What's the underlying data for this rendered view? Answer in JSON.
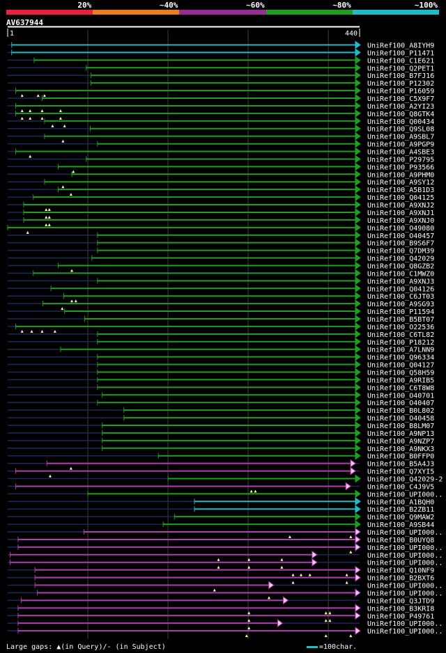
{
  "colors": {
    "bg": "#000000",
    "bin_20": "#e8213c",
    "bin_40": "#ee7a1e",
    "bin_60": "#962e96",
    "bin_80": "#1f9e1f",
    "bin_100": "#1fbcc8",
    "hit_green": "#1f9e1f",
    "hit_magenta": "#b03cb0",
    "hit_cyan": "#1fbcc8",
    "unaligned": "#1a2a5a",
    "gridline": "#404040"
  },
  "legend": {
    "bins": [
      {
        "label": "20%",
        "color": "#e8213c"
      },
      {
        "label": "~40%",
        "color": "#ee7a1e"
      },
      {
        "label": "~60%",
        "color": "#962e96"
      },
      {
        "label": "~80%",
        "color": "#1f9e1f"
      },
      {
        "label": "~100%",
        "color": "#1fbcc8"
      }
    ]
  },
  "query": {
    "id": "AV637944",
    "start_label": "1",
    "end_label": "440"
  },
  "footer": {
    "gaps_text": "Large gaps: ▲(in Query)/- (in Subject)",
    "scale_text": "=100char."
  },
  "chart_data": {
    "type": "alignment-overview",
    "query_length": 440,
    "identity_bins": [
      "20%",
      "~40%",
      "~60%",
      "~80%",
      "~100%"
    ],
    "hits": [
      {
        "name": "UniRef100_A8IYH9",
        "start": 6,
        "end": 440,
        "bin": "~100%",
        "arrow": "filled",
        "ins": []
      },
      {
        "name": "UniRef100_P11471",
        "start": 6,
        "end": 440,
        "bin": "~100%",
        "arrow": "filled",
        "ins": []
      },
      {
        "name": "UniRef100_C1E621",
        "start": 34,
        "end": 440,
        "bin": "~80%",
        "arrow": "filled",
        "ins": []
      },
      {
        "name": "UniRef100_Q2PET1",
        "start": 99,
        "end": 440,
        "bin": "~80%",
        "arrow": "filled",
        "ins": []
      },
      {
        "name": "UniRef100_B7FJ16",
        "start": 105,
        "end": 440,
        "bin": "~80%",
        "arrow": "filled",
        "ins": []
      },
      {
        "name": "UniRef100_P12302",
        "start": 105,
        "end": 440,
        "bin": "~80%",
        "arrow": "filled",
        "ins": []
      },
      {
        "name": "UniRef100_P16059",
        "start": 11,
        "end": 440,
        "bin": "~80%",
        "arrow": "filled",
        "ins": [
          19,
          39,
          47
        ]
      },
      {
        "name": "UniRef100_C5X9F7",
        "start": 44,
        "end": 440,
        "bin": "~80%",
        "arrow": "filled",
        "ins": []
      },
      {
        "name": "UniRef100_A2YI23",
        "start": 11,
        "end": 440,
        "bin": "~80%",
        "arrow": "filled",
        "ins": [
          19,
          29,
          44,
          67
        ]
      },
      {
        "name": "UniRef100_Q8GTK4",
        "start": 11,
        "end": 440,
        "bin": "~80%",
        "arrow": "filled",
        "ins": [
          19,
          29,
          44,
          67
        ]
      },
      {
        "name": "UniRef100_Q00434",
        "start": 47,
        "end": 440,
        "bin": "~80%",
        "arrow": "filled",
        "ins": [
          57,
          72
        ]
      },
      {
        "name": "UniRef100_Q9SL08",
        "start": 104,
        "end": 440,
        "bin": "~80%",
        "arrow": "filled",
        "ins": []
      },
      {
        "name": "UniRef100_A9SBL7",
        "start": 47,
        "end": 440,
        "bin": "~80%",
        "arrow": "filled",
        "ins": [
          70
        ]
      },
      {
        "name": "UniRef100_A9PGP9",
        "start": 113,
        "end": 440,
        "bin": "~80%",
        "arrow": "filled",
        "ins": []
      },
      {
        "name": "UniRef100_A4SBE3",
        "start": 11,
        "end": 440,
        "bin": "~80%",
        "arrow": "filled",
        "ins": [
          29
        ]
      },
      {
        "name": "UniRef100_P29795",
        "start": 99,
        "end": 440,
        "bin": "~80%",
        "arrow": "filled",
        "ins": []
      },
      {
        "name": "UniRef100_P93566",
        "start": 64,
        "end": 440,
        "bin": "~80%",
        "arrow": "filled",
        "ins": [
          83
        ]
      },
      {
        "name": "UniRef100_A9PHM0",
        "start": 81,
        "end": 440,
        "bin": "~80%",
        "arrow": "filled",
        "ins": []
      },
      {
        "name": "UniRef100_A9SY12",
        "start": 47,
        "end": 440,
        "bin": "~80%",
        "arrow": "filled",
        "ins": [
          70
        ]
      },
      {
        "name": "UniRef100_A5B1D3",
        "start": 64,
        "end": 440,
        "bin": "~80%",
        "arrow": "filled",
        "ins": [
          80
        ]
      },
      {
        "name": "UniRef100_Q04125",
        "start": 33,
        "end": 440,
        "bin": "~80%",
        "arrow": "filled",
        "ins": []
      },
      {
        "name": "UniRef100_A9XNJ2",
        "start": 21,
        "end": 440,
        "bin": "~80%",
        "arrow": "filled",
        "ins": [
          49,
          53
        ]
      },
      {
        "name": "UniRef100_A9XNJ1",
        "start": 21,
        "end": 440,
        "bin": "~80%",
        "arrow": "filled",
        "ins": [
          49,
          53
        ]
      },
      {
        "name": "UniRef100_A9XNJ0",
        "start": 21,
        "end": 440,
        "bin": "~80%",
        "arrow": "filled",
        "ins": [
          49,
          53
        ]
      },
      {
        "name": "UniRef100_O49080",
        "start": 1,
        "end": 440,
        "bin": "~80%",
        "arrow": "filled",
        "ins": [
          26
        ]
      },
      {
        "name": "UniRef100_O40457",
        "start": 113,
        "end": 440,
        "bin": "~80%",
        "arrow": "filled",
        "ins": []
      },
      {
        "name": "UniRef100_B9S6F7",
        "start": 113,
        "end": 440,
        "bin": "~80%",
        "arrow": "filled",
        "ins": []
      },
      {
        "name": "UniRef100_Q7DM39",
        "start": 113,
        "end": 440,
        "bin": "~80%",
        "arrow": "filled",
        "ins": []
      },
      {
        "name": "UniRef100_Q42029",
        "start": 106,
        "end": 440,
        "bin": "~80%",
        "arrow": "filled",
        "ins": []
      },
      {
        "name": "UniRef100_Q8GZB2",
        "start": 64,
        "end": 440,
        "bin": "~80%",
        "arrow": "filled",
        "ins": [
          81
        ]
      },
      {
        "name": "UniRef100_C1MWZ0",
        "start": 33,
        "end": 440,
        "bin": "~80%",
        "arrow": "filled",
        "ins": []
      },
      {
        "name": "UniRef100_A9XNJ3",
        "start": 113,
        "end": 440,
        "bin": "~80%",
        "arrow": "filled",
        "ins": []
      },
      {
        "name": "UniRef100_Q04126",
        "start": 55,
        "end": 440,
        "bin": "~80%",
        "arrow": "filled",
        "ins": []
      },
      {
        "name": "UniRef100_C6JT03",
        "start": 71,
        "end": 440,
        "bin": "~80%",
        "arrow": "filled",
        "ins": [
          81,
          86
        ]
      },
      {
        "name": "UniRef100_A9SG93",
        "start": 45,
        "end": 440,
        "bin": "~80%",
        "arrow": "filled",
        "ins": [
          69
        ]
      },
      {
        "name": "UniRef100_P11594",
        "start": 72,
        "end": 440,
        "bin": "~80%",
        "arrow": "filled",
        "ins": []
      },
      {
        "name": "UniRef100_B5BT07",
        "start": 97,
        "end": 440,
        "bin": "~80%",
        "arrow": "filled",
        "ins": []
      },
      {
        "name": "UniRef100_O22536",
        "start": 11,
        "end": 440,
        "bin": "~80%",
        "arrow": "filled",
        "ins": [
          19,
          31,
          44,
          60
        ]
      },
      {
        "name": "UniRef100_C6TL82",
        "start": 113,
        "end": 440,
        "bin": "~80%",
        "arrow": "filled",
        "ins": []
      },
      {
        "name": "UniRef100_P18212",
        "start": 113,
        "end": 440,
        "bin": "~80%",
        "arrow": "filled",
        "ins": []
      },
      {
        "name": "UniRef100_A7LNN9",
        "start": 67,
        "end": 440,
        "bin": "~80%",
        "arrow": "filled",
        "ins": []
      },
      {
        "name": "UniRef100_Q96334",
        "start": 113,
        "end": 440,
        "bin": "~80%",
        "arrow": "filled",
        "ins": []
      },
      {
        "name": "UniRef100_Q04127",
        "start": 113,
        "end": 440,
        "bin": "~80%",
        "arrow": "filled",
        "ins": []
      },
      {
        "name": "UniRef100_Q58H59",
        "start": 113,
        "end": 440,
        "bin": "~80%",
        "arrow": "filled",
        "ins": []
      },
      {
        "name": "UniRef100_A9RIB5",
        "start": 113,
        "end": 440,
        "bin": "~80%",
        "arrow": "filled",
        "ins": []
      },
      {
        "name": "UniRef100_C6T8W8",
        "start": 113,
        "end": 440,
        "bin": "~80%",
        "arrow": "filled",
        "ins": []
      },
      {
        "name": "UniRef100_O40701",
        "start": 119,
        "end": 440,
        "bin": "~80%",
        "arrow": "filled",
        "ins": []
      },
      {
        "name": "UniRef100_O40407",
        "start": 113,
        "end": 440,
        "bin": "~80%",
        "arrow": "filled",
        "ins": []
      },
      {
        "name": "UniRef100_B0L802",
        "start": 146,
        "end": 440,
        "bin": "~80%",
        "arrow": "filled",
        "ins": []
      },
      {
        "name": "UniRef100_O40458",
        "start": 146,
        "end": 440,
        "bin": "~80%",
        "arrow": "filled",
        "ins": []
      },
      {
        "name": "UniRef100_B8LM07",
        "start": 119,
        "end": 440,
        "bin": "~80%",
        "arrow": "filled",
        "ins": []
      },
      {
        "name": "UniRef100_A9NP13",
        "start": 119,
        "end": 440,
        "bin": "~80%",
        "arrow": "filled",
        "ins": []
      },
      {
        "name": "UniRef100_A9NZP7",
        "start": 119,
        "end": 440,
        "bin": "~80%",
        "arrow": "filled",
        "ins": []
      },
      {
        "name": "UniRef100_A9NKX3",
        "start": 119,
        "end": 440,
        "bin": "~80%",
        "arrow": "filled",
        "ins": []
      },
      {
        "name": "UniRef100_B0FFP0",
        "start": 189,
        "end": 440,
        "bin": "~80%",
        "arrow": "filled",
        "ins": []
      },
      {
        "name": "UniRef100_B5A4J3",
        "start": 50,
        "end": 434,
        "bin": "~60%",
        "arrow": "hollow",
        "ins": [
          80
        ]
      },
      {
        "name": "UniRef100_Q7XYI5",
        "start": 11,
        "end": 434,
        "bin": "~60%",
        "arrow": "hollow",
        "ins": [
          54
        ]
      },
      {
        "name": "UniRef100_Q42029-2",
        "start": 201,
        "end": 440,
        "bin": "~80%",
        "arrow": "filled",
        "ins": []
      },
      {
        "name": "UniRef100_C4J9V5",
        "start": 11,
        "end": 428,
        "bin": "~60%",
        "arrow": "hollow",
        "ins": [
          305,
          310
        ]
      },
      {
        "name": "UniRef100_UPI000..",
        "start": 101,
        "end": 440,
        "bin": "~80%",
        "arrow": "filled",
        "ins": []
      },
      {
        "name": "UniRef100_A1BQH0",
        "start": 234,
        "end": 440,
        "bin": "~100%",
        "arrow": "filled",
        "ins": []
      },
      {
        "name": "UniRef100_B2ZB11",
        "start": 234,
        "end": 440,
        "bin": "~100%",
        "arrow": "filled",
        "ins": []
      },
      {
        "name": "UniRef100_Q9MAW2",
        "start": 209,
        "end": 440,
        "bin": "~80%",
        "arrow": "filled",
        "ins": []
      },
      {
        "name": "UniRef100_A9SB44",
        "start": 195,
        "end": 440,
        "bin": "~80%",
        "arrow": "filled",
        "ins": []
      },
      {
        "name": "UniRef100_UPI000..",
        "start": 96,
        "end": 440,
        "bin": "~60%",
        "arrow": "hollow",
        "ins": [
          353,
          429
        ]
      },
      {
        "name": "UniRef100_B0UYQ8",
        "start": 14,
        "end": 440,
        "bin": "~60%",
        "arrow": "hollow",
        "ins": []
      },
      {
        "name": "UniRef100_UPI000..",
        "start": 14,
        "end": 440,
        "bin": "~60%",
        "arrow": "hollow",
        "ins": [
          429
        ]
      },
      {
        "name": "UniRef100_UPI000..",
        "start": 4,
        "end": 386,
        "bin": "~60%",
        "arrow": "hollow",
        "ins": [
          264,
          302,
          343
        ]
      },
      {
        "name": "UniRef100_UPI000..",
        "start": 4,
        "end": 386,
        "bin": "~60%",
        "arrow": "hollow",
        "ins": [
          264,
          302,
          343
        ]
      },
      {
        "name": "UniRef100_Q10NF9",
        "start": 35,
        "end": 440,
        "bin": "~60%",
        "arrow": "hollow",
        "ins": [
          357,
          367,
          378,
          424
        ]
      },
      {
        "name": "UniRef100_B2BXT6",
        "start": 35,
        "end": 440,
        "bin": "~60%",
        "arrow": "hollow",
        "ins": [
          357,
          424
        ]
      },
      {
        "name": "UniRef100_UPI000..",
        "start": 35,
        "end": 332,
        "bin": "~60%",
        "arrow": "hollow",
        "ins": [
          259
        ]
      },
      {
        "name": "UniRef100_UPI000..",
        "start": 38,
        "end": 440,
        "bin": "~60%",
        "arrow": "hollow",
        "ins": [
          327
        ]
      },
      {
        "name": "UniRef100_Q3JTD9",
        "start": 18,
        "end": 350,
        "bin": "~60%",
        "arrow": "hollow",
        "ins": []
      },
      {
        "name": "UniRef100_B3KRI8",
        "start": 14,
        "end": 440,
        "bin": "~60%",
        "arrow": "hollow",
        "ins": [
          302,
          398,
          403
        ]
      },
      {
        "name": "UniRef100_P49761",
        "start": 14,
        "end": 440,
        "bin": "~60%",
        "arrow": "hollow",
        "ins": [
          302,
          398,
          403
        ]
      },
      {
        "name": "UniRef100_UPI000..",
        "start": 14,
        "end": 343,
        "bin": "~60%",
        "arrow": "hollow",
        "ins": [
          302
        ]
      },
      {
        "name": "UniRef100_UPI000..",
        "start": 14,
        "end": 440,
        "bin": "~60%",
        "arrow": "hollow",
        "ins": [
          299,
          398,
          429
        ]
      }
    ]
  }
}
